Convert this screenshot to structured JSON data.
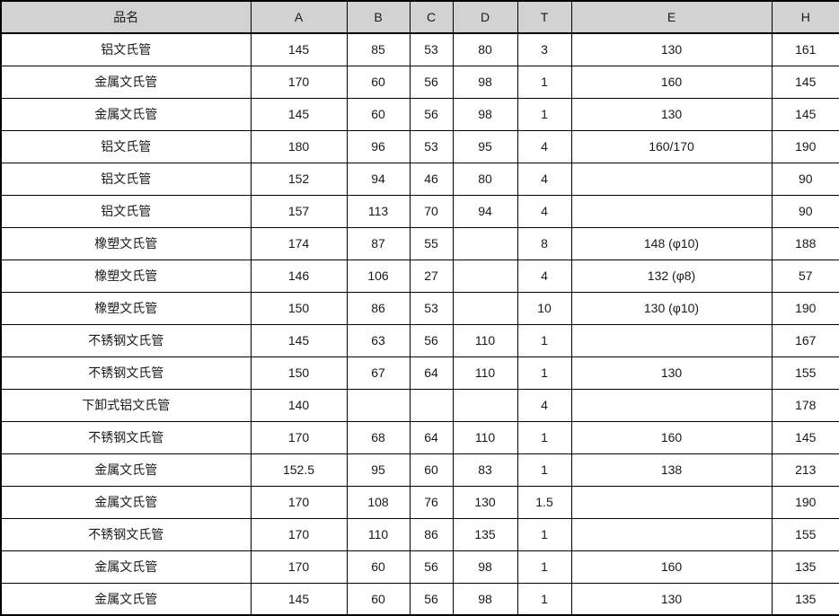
{
  "table": {
    "columns": [
      {
        "key": "name",
        "label": "品名"
      },
      {
        "key": "A",
        "label": "A"
      },
      {
        "key": "B",
        "label": "B"
      },
      {
        "key": "C",
        "label": "C"
      },
      {
        "key": "D",
        "label": "D"
      },
      {
        "key": "T",
        "label": "T"
      },
      {
        "key": "E",
        "label": "E"
      },
      {
        "key": "H",
        "label": "H"
      }
    ],
    "rows": [
      [
        "铝文氏管",
        "145",
        "85",
        "53",
        "80",
        "3",
        "130",
        "161"
      ],
      [
        "金属文氏管",
        "170",
        "60",
        "56",
        "98",
        "1",
        "160",
        "145"
      ],
      [
        "金属文氏管",
        "145",
        "60",
        "56",
        "98",
        "1",
        "130",
        "145"
      ],
      [
        "铝文氏管",
        "180",
        "96",
        "53",
        "95",
        "4",
        "160/170",
        "190"
      ],
      [
        "铝文氏管",
        "152",
        "94",
        "46",
        "80",
        "4",
        "",
        "90"
      ],
      [
        "铝文氏管",
        "157",
        "113",
        "70",
        "94",
        "4",
        "",
        "90"
      ],
      [
        "橡塑文氏管",
        "174",
        "87",
        "55",
        "",
        "8",
        "148 (φ10)",
        "188"
      ],
      [
        "橡塑文氏管",
        "146",
        "106",
        "27",
        "",
        "4",
        "132 (φ8)",
        "57"
      ],
      [
        "橡塑文氏管",
        "150",
        "86",
        "53",
        "",
        "10",
        "130 (φ10)",
        "190"
      ],
      [
        "不锈钢文氏管",
        "145",
        "63",
        "56",
        "110",
        "1",
        "",
        "167"
      ],
      [
        "不锈钢文氏管",
        "150",
        "67",
        "64",
        "110",
        "1",
        "130",
        "155"
      ],
      [
        "下卸式铝文氏管",
        "140",
        "",
        "",
        "",
        "4",
        "",
        "178"
      ],
      [
        "不锈钢文氏管",
        "170",
        "68",
        "64",
        "110",
        "1",
        "160",
        "145"
      ],
      [
        "金属文氏管",
        "152.5",
        "95",
        "60",
        "83",
        "1",
        "138",
        "213"
      ],
      [
        "金属文氏管",
        "170",
        "108",
        "76",
        "130",
        "1.5",
        "",
        "190"
      ],
      [
        "不锈钢文氏管",
        "170",
        "110",
        "86",
        "135",
        "1",
        "",
        "155"
      ],
      [
        "金属文氏管",
        "170",
        "60",
        "56",
        "98",
        "1",
        "160",
        "135"
      ],
      [
        "金属文氏管",
        "145",
        "60",
        "56",
        "98",
        "1",
        "130",
        "135"
      ]
    ]
  },
  "colors": {
    "header_bg": "#d2d2d2",
    "border": "#000000",
    "text": "#1a1a1a"
  }
}
